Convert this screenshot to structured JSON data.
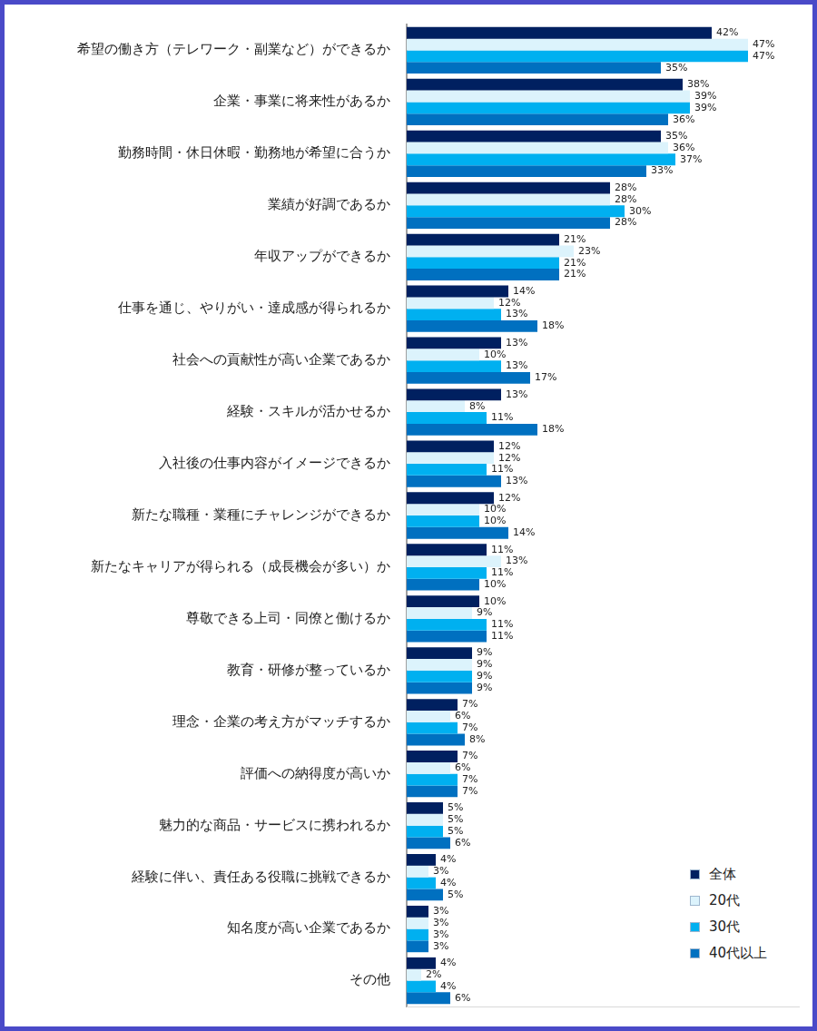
{
  "chart_data": {
    "type": "bar",
    "orientation": "horizontal",
    "categories": [
      "希望の働き方（テレワーク・副業など）ができるか",
      "企業・事業に将来性があるか",
      "勤務時間・休日休暇・勤務地が希望に合うか",
      "業績が好調であるか",
      "年収アップができるか",
      "仕事を通じ、やりがい・達成感が得られるか",
      "社会への貢献性が高い企業であるか",
      "経験・スキルが活かせるか",
      "入社後の仕事内容がイメージできるか",
      "新たな職種・業種にチャレンジができるか",
      "新たなキャリアが得られる（成長機会が多い）か",
      "尊敬できる上司・同僚と働けるか",
      "教育・研修が整っているか",
      "理念・企業の考え方がマッチするか",
      "評価への納得度が高いか",
      "魅力的な商品・サービスに携われるか",
      "経験に伴い、責任ある役職に挑戦できるか",
      "知名度が高い企業であるか",
      "その他"
    ],
    "series": [
      {
        "name": "全体",
        "color": "#002060",
        "values": [
          42,
          38,
          35,
          28,
          21,
          14,
          13,
          13,
          12,
          12,
          11,
          10,
          9,
          7,
          7,
          5,
          4,
          3,
          4
        ],
        "value_labels": [
          "42%",
          "38%",
          "35%",
          "28%",
          "21%",
          "14%",
          "13%",
          "13%",
          "12%",
          "12%",
          "11%",
          "10%",
          "9%",
          "7%",
          "7%",
          "5%",
          "4%",
          "3%",
          "4%"
        ]
      },
      {
        "name": "20代",
        "color": "#dcf3fc",
        "values": [
          47,
          39,
          36,
          28,
          23,
          12,
          10,
          8,
          12,
          10,
          13,
          9,
          9,
          6,
          6,
          5,
          3,
          3,
          2
        ],
        "value_labels": [
          "47%",
          "39%",
          "36%",
          "28%",
          "23%",
          "12%",
          "10%",
          "8%",
          "12%",
          "10%",
          "13%",
          "9%",
          "9%",
          "6%",
          "6%",
          "5%",
          "3%",
          "3%",
          "2%"
        ]
      },
      {
        "name": "30代",
        "color": "#00b0f0",
        "values": [
          47,
          39,
          37,
          30,
          21,
          13,
          13,
          11,
          11,
          10,
          11,
          11,
          9,
          7,
          7,
          5,
          4,
          3,
          4
        ],
        "value_labels": [
          "47%",
          "39%",
          "37%",
          "30%",
          "21%",
          "13%",
          "13%",
          "11%",
          "11%",
          "10%",
          "11%",
          "11%",
          "9%",
          "7%",
          "7%",
          "5%",
          "4%",
          "3%",
          "4%"
        ]
      },
      {
        "name": "40代以上",
        "color": "#0070c0",
        "values": [
          35,
          36,
          33,
          28,
          21,
          18,
          17,
          18,
          13,
          14,
          10,
          11,
          9,
          8,
          7,
          6,
          5,
          3,
          6
        ],
        "value_labels": [
          "35%",
          "36%",
          "33%",
          "28%",
          "21%",
          "18%",
          "17%",
          "18%",
          "13%",
          "14%",
          "10%",
          "11%",
          "9%",
          "8%",
          "7%",
          "6%",
          "5%",
          "3%",
          "6%"
        ]
      }
    ],
    "xlim": [
      0,
      54
    ],
    "tick_labels": "y",
    "grid": false,
    "legend": "lower right",
    "data_labels": true
  }
}
